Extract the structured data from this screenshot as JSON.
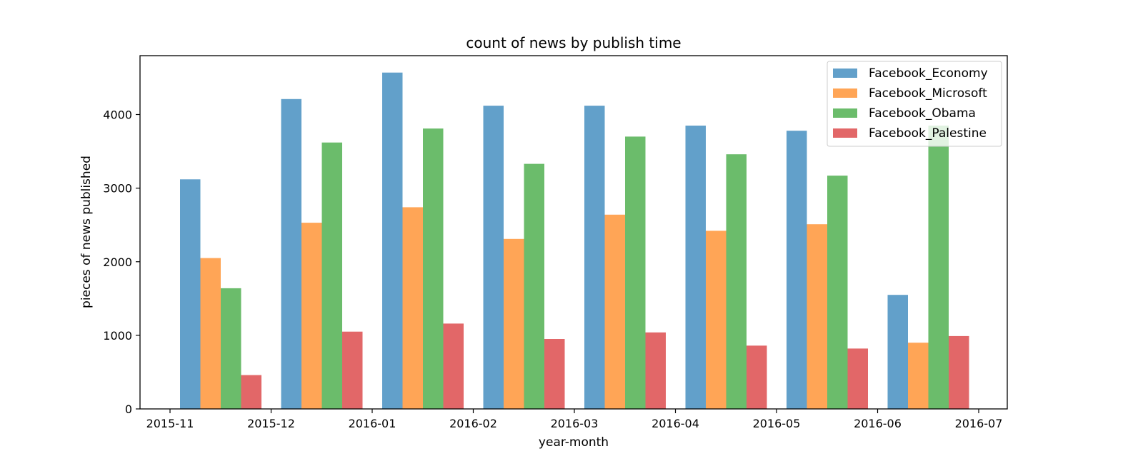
{
  "chart_data": {
    "type": "bar",
    "title": "count of news by publish time",
    "xlabel": "year-month",
    "ylabel": "pieces of news published",
    "categories": [
      "2015-11",
      "2015-12",
      "2016-01",
      "2016-02",
      "2016-03",
      "2016-04",
      "2016-05",
      "2016-06"
    ],
    "x_tick_labels": [
      "2015-11",
      "2015-12",
      "2016-01",
      "2016-02",
      "2016-03",
      "2016-04",
      "2016-05",
      "2016-06",
      "2016-07"
    ],
    "ylim": [
      0,
      4800
    ],
    "y_ticks": [
      0,
      1000,
      2000,
      3000,
      4000
    ],
    "grid": false,
    "legend_position": "top-right",
    "series": [
      {
        "name": "Facebook_Economy",
        "color": "#1f77b4",
        "values": [
          3120,
          4210,
          4570,
          4120,
          4120,
          3850,
          3780,
          1550
        ]
      },
      {
        "name": "Facebook_Microsoft",
        "color": "#ff7f0e",
        "values": [
          2050,
          2530,
          2740,
          2310,
          2640,
          2420,
          2510,
          900
        ]
      },
      {
        "name": "Facebook_Obama",
        "color": "#2ca02c",
        "values": [
          1640,
          3620,
          3810,
          3330,
          3700,
          3460,
          3170,
          3850
        ]
      },
      {
        "name": "Facebook_Palestine",
        "color": "#d62728",
        "values": [
          460,
          1050,
          1160,
          950,
          1040,
          860,
          820,
          990
        ]
      }
    ]
  }
}
